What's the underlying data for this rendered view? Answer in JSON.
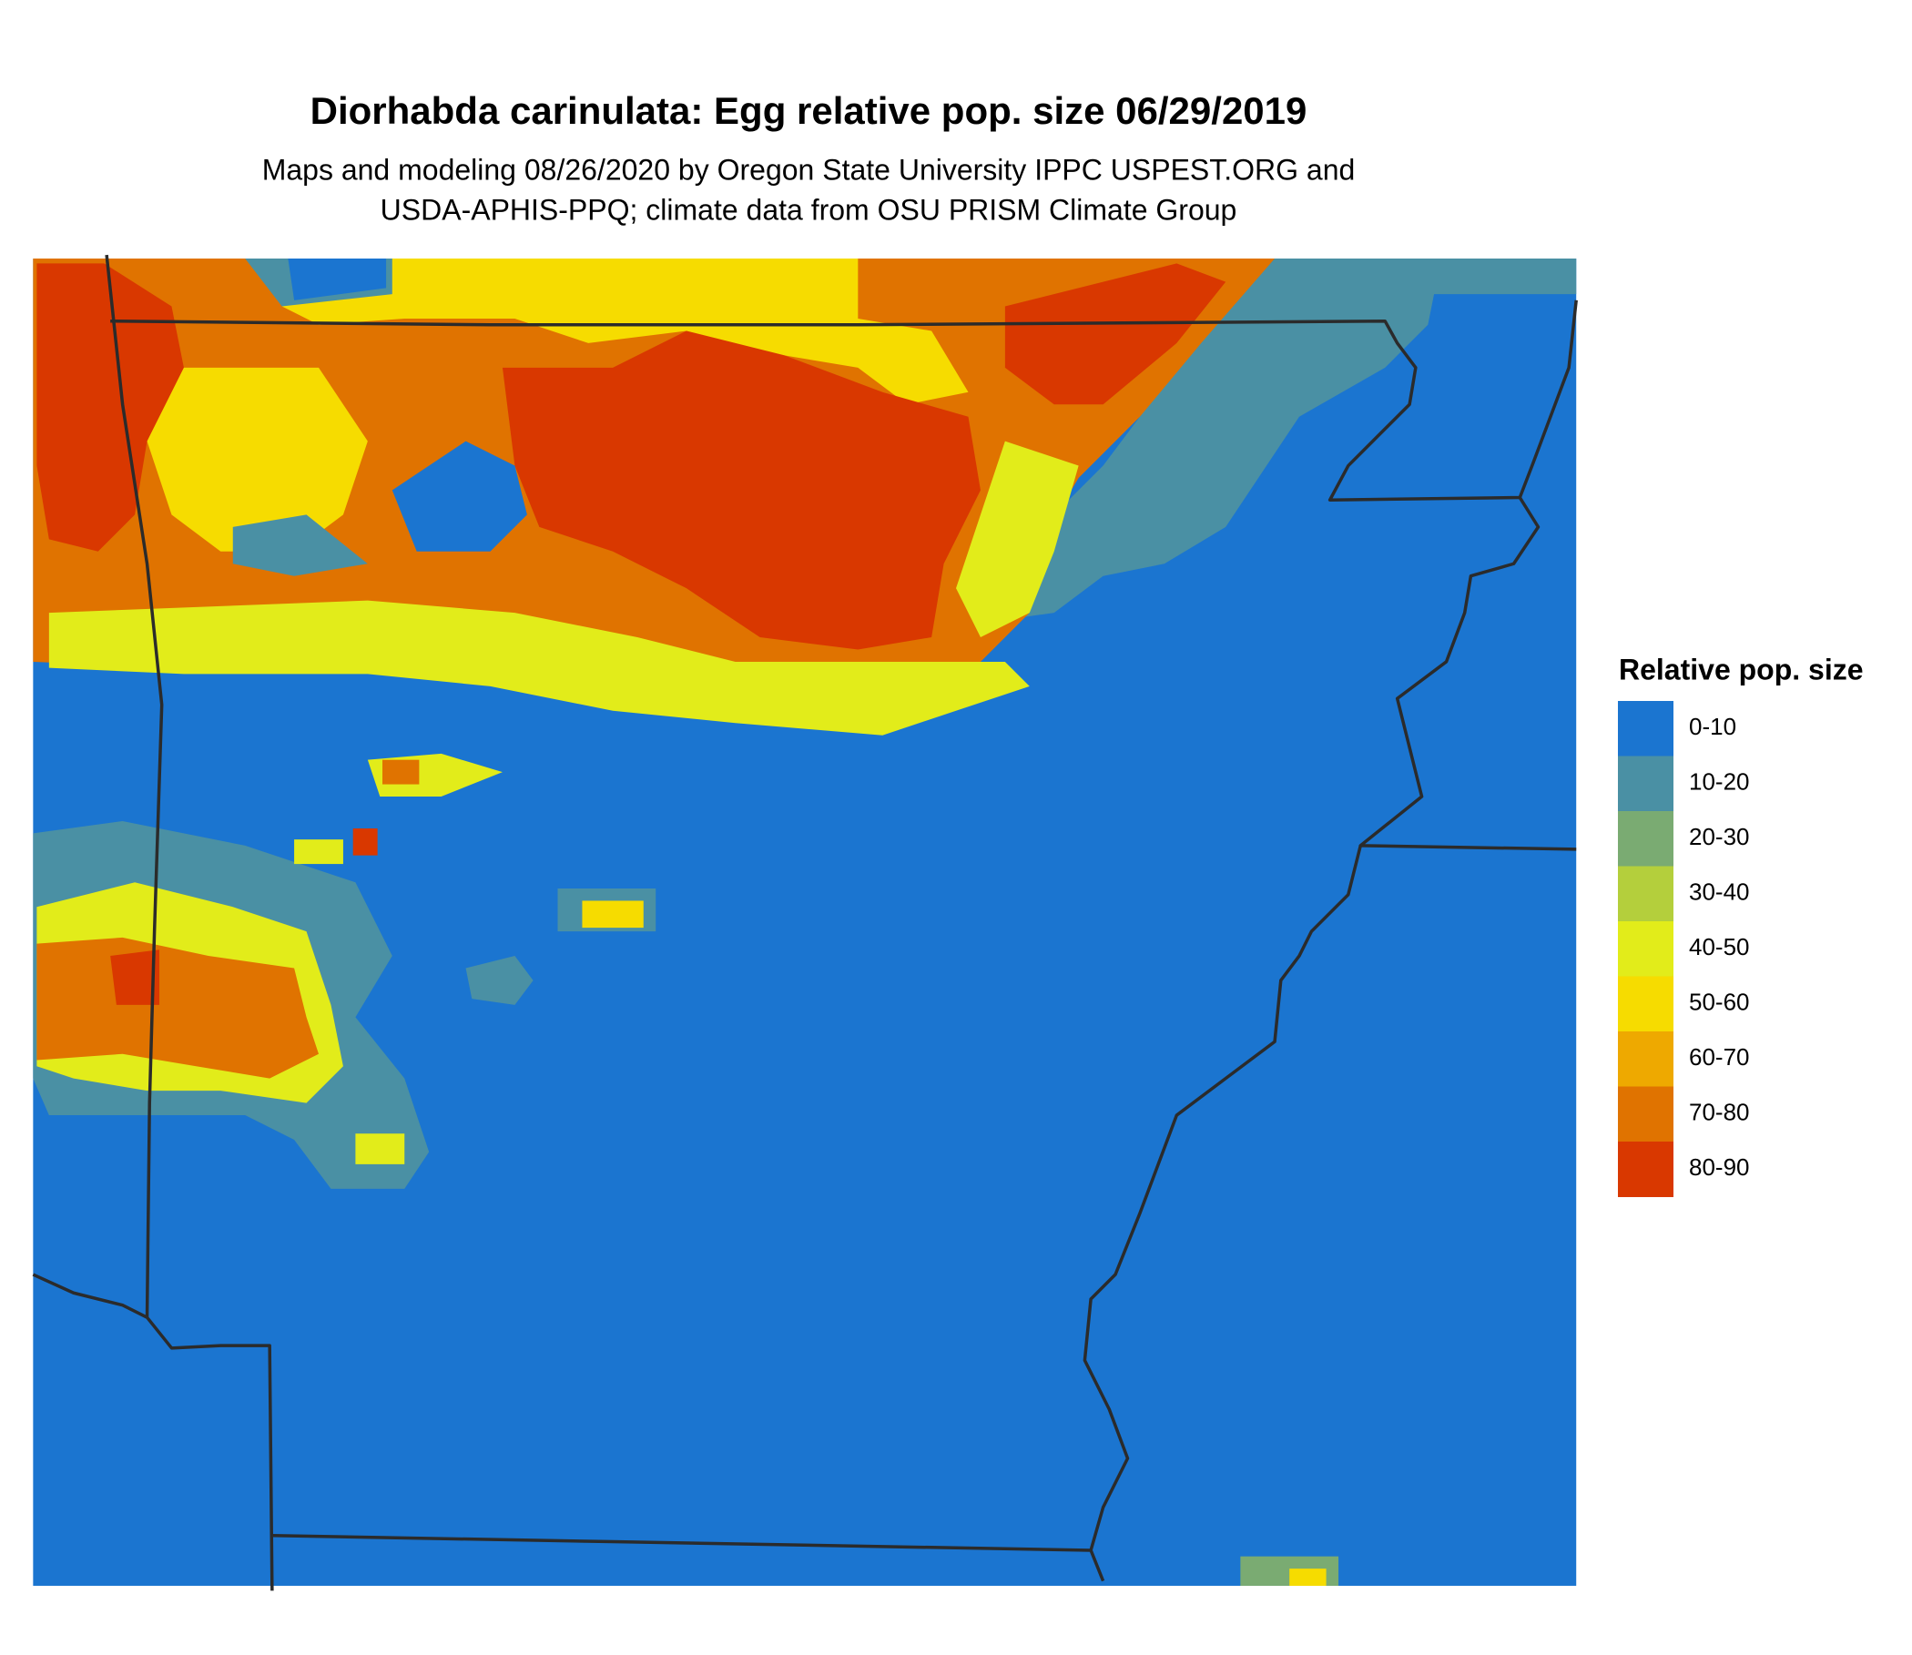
{
  "header": {
    "title": "Diorhabda carinulata: Egg relative pop. size 06/29/2019",
    "subtitle": [
      "Maps and modeling 08/26/2020 by Oregon State University IPPC USPEST.ORG and",
      "USDA-APHIS-PPQ; climate data from OSU PRISM Climate Group"
    ]
  },
  "legend": {
    "title": "Relative pop. size",
    "items": [
      {
        "label": "0-10",
        "color": "#1b75d0"
      },
      {
        "label": "10-20",
        "color": "#4a90a4"
      },
      {
        "label": "20-30",
        "color": "#7aab72"
      },
      {
        "label": "30-40",
        "color": "#b4cf3c"
      },
      {
        "label": "40-50",
        "color": "#e2ec1a"
      },
      {
        "label": "50-60",
        "color": "#f6dc00"
      },
      {
        "label": "60-70",
        "color": "#eea900"
      },
      {
        "label": "70-80",
        "color": "#e07300"
      },
      {
        "label": "80-90",
        "color": "#d93800"
      }
    ]
  }
}
